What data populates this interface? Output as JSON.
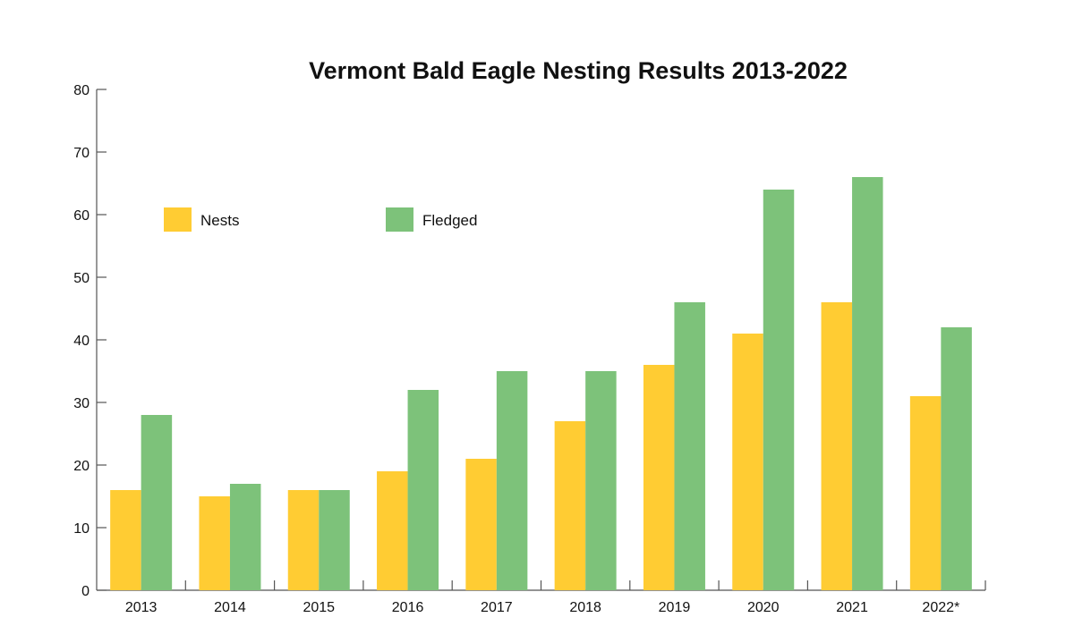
{
  "chart_data": {
    "type": "bar",
    "title": "Vermont Bald Eagle Nesting Results 2013-2022",
    "xlabel": "",
    "ylabel": "",
    "categories": [
      "2013",
      "2014",
      "2015",
      "2016",
      "2017",
      "2018",
      "2019",
      "2020",
      "2021",
      "2022*"
    ],
    "series": [
      {
        "name": "Nests",
        "color": "#FFCC33",
        "values": [
          16,
          15,
          16,
          19,
          21,
          27,
          36,
          41,
          46,
          31
        ]
      },
      {
        "name": "Fledged",
        "color": "#7DC27A",
        "values": [
          28,
          17,
          16,
          32,
          35,
          35,
          46,
          64,
          66,
          42
        ]
      }
    ],
    "ylim": [
      0,
      80
    ],
    "yticks": [
      0,
      10,
      20,
      30,
      40,
      50,
      60,
      70,
      80
    ],
    "grid": false,
    "legend_position": "top-left"
  }
}
